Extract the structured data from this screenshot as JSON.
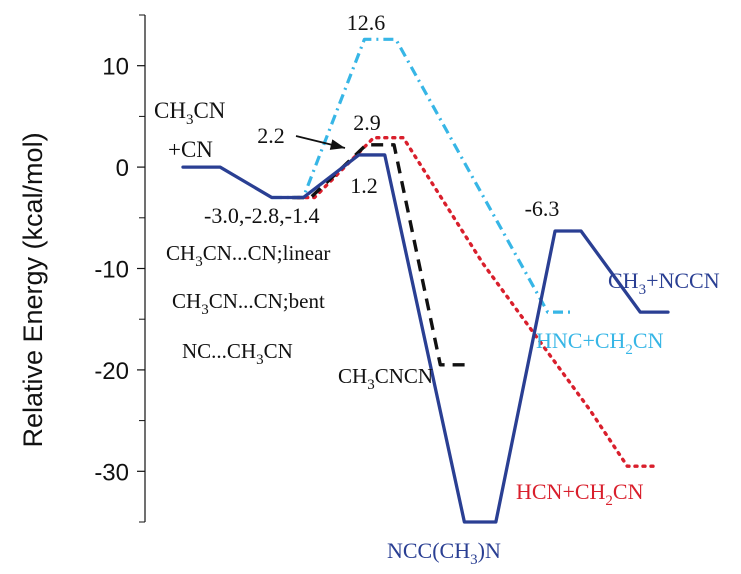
{
  "chart_data": {
    "type": "line",
    "ylabel": "Relative Energy (kcal/mol)",
    "ylim": [
      -35,
      15
    ],
    "yticks": [
      10,
      0,
      -10,
      -20,
      -30
    ],
    "ytick_labels": [
      "10",
      "0",
      "-10",
      "-20",
      "-30"
    ],
    "grid": false,
    "colors": {
      "navy": "#2a3f93",
      "black": "#111111",
      "red": "#d91f2c",
      "cyan": "#37b6e6"
    },
    "series": [
      {
        "key": "navy_solid",
        "style": "solid",
        "color": "#2a3f93",
        "segments": [
          {
            "from": "CH3CN + CN",
            "to": "CH3CN...CN complex",
            "y": [
              0,
              -3.0
            ]
          },
          {
            "from": "complex",
            "to": "TS",
            "y": [
              -3.0,
              1.2
            ]
          },
          {
            "from": "TS",
            "to": "NCC(CH3)N",
            "y": [
              1.2,
              -35
            ]
          },
          {
            "from": "NCC(CH3)N",
            "to": "TS",
            "y": [
              -35,
              -6.3
            ]
          },
          {
            "from": "TS",
            "to": "CH3 + NCCN",
            "y": [
              -6.3,
              -14.3
            ]
          }
        ],
        "points": [
          [
            0,
            0
          ],
          [
            1,
            0
          ],
          [
            2.4,
            -3.0
          ],
          [
            3.25,
            -3.0
          ],
          [
            4.75,
            1.2
          ],
          [
            5.45,
            1.2
          ],
          [
            7.6,
            -35
          ],
          [
            8.45,
            -35
          ],
          [
            10.05,
            -6.3
          ],
          [
            10.75,
            -6.3
          ],
          [
            12.35,
            -14.3
          ],
          [
            13.1,
            -14.3
          ]
        ]
      },
      {
        "key": "black_dashed",
        "style": "dashed",
        "color": "#111111",
        "points": [
          [
            2.95,
            -3.0
          ],
          [
            3.45,
            -3.0
          ],
          [
            4.95,
            2.2
          ],
          [
            5.7,
            2.2
          ],
          [
            6.95,
            -19.5
          ],
          [
            7.75,
            -19.5
          ]
        ]
      },
      {
        "key": "red_dotted",
        "style": "dotted",
        "color": "#d91f2c",
        "points": [
          [
            3.1,
            -3.0
          ],
          [
            3.55,
            -3.0
          ],
          [
            5.15,
            2.9
          ],
          [
            5.95,
            2.9
          ],
          [
            8.1,
            -9.5
          ],
          [
            11.0,
            -24
          ],
          [
            12.0,
            -29.5
          ],
          [
            12.8,
            -29.5
          ]
        ]
      },
      {
        "key": "cyan_dashdot",
        "style": "dashdot",
        "color": "#37b6e6",
        "points": [
          [
            2.4,
            -3.0
          ],
          [
            3.25,
            -3.0
          ],
          [
            4.9,
            12.6
          ],
          [
            5.75,
            12.6
          ],
          [
            8.05,
            -2.5
          ],
          [
            9.85,
            -14.3
          ],
          [
            10.5,
            -14.3
          ]
        ]
      }
    ],
    "labels": {
      "reactants_line1": "CH",
      "reactants_sub1": "3",
      "reactants_line1_rest": "CN",
      "reactants_line2": "+CN",
      "complex_energies": "-3.0,-2.8,-1.4",
      "complex_linear_a": "CH",
      "complex_linear_sub": "3",
      "complex_linear_b": "CN...CN;linear",
      "complex_bent_a": "CH",
      "complex_bent_sub": "3",
      "complex_bent_b": "CN...CN;bent",
      "complex_nc_a": "NC...CH",
      "complex_nc_sub": "3",
      "complex_nc_b": "CN",
      "ts_cyan": "12.6",
      "ts_black": "2.2",
      "ts_red": "2.9",
      "ts_navy": "1.2",
      "ts_navy2": "-6.3",
      "prod_black_a": "CH",
      "prod_black_sub": "3",
      "prod_black_b": "CNCN",
      "prod_navy_int_a": "NCC(CH",
      "prod_navy_int_sub": "3",
      "prod_navy_int_b": ")N",
      "prod_navy_a": "CH",
      "prod_navy_sub": "3",
      "prod_navy_b": "+NCCN",
      "prod_cyan_a": "HNC+CH",
      "prod_cyan_sub": "2",
      "prod_cyan_b": "CN",
      "prod_red_a": "HCN+CH",
      "prod_red_sub": "2",
      "prod_red_b": "CN"
    }
  }
}
